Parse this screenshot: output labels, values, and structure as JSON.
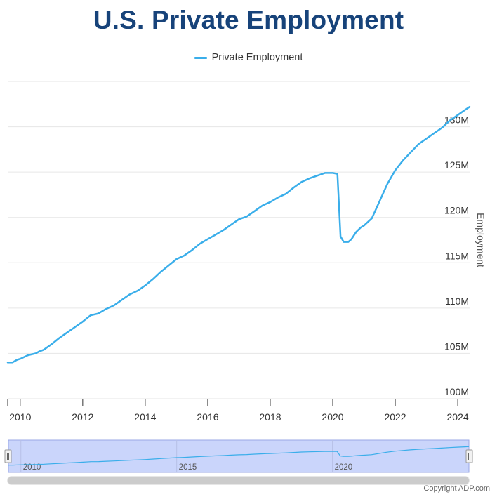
{
  "chart_data": {
    "type": "line",
    "title": "U.S. Private Employment",
    "ylabel": "Employment",
    "xlabel": "",
    "legend": "top-center",
    "grid": true,
    "ylim": [
      100,
      135
    ],
    "xlim": [
      2009.6,
      2024.38
    ],
    "y_ticks": [
      "100M",
      "105M",
      "110M",
      "115M",
      "120M",
      "125M",
      "130M"
    ],
    "x_ticks": [
      "2010",
      "2012",
      "2014",
      "2016",
      "2018",
      "2020",
      "2022",
      "2024"
    ],
    "navigator_ticks": [
      "2010",
      "2015",
      "2020"
    ],
    "series": [
      {
        "name": "Private Employment",
        "color": "#3aaeea",
        "x": [
          2009.6,
          2009.75,
          2009.9,
          2010.0,
          2010.25,
          2010.5,
          2010.6,
          2010.75,
          2011.0,
          2011.25,
          2011.5,
          2011.75,
          2012.0,
          2012.25,
          2012.5,
          2012.75,
          2013.0,
          2013.25,
          2013.5,
          2013.75,
          2014.0,
          2014.25,
          2014.5,
          2014.75,
          2015.0,
          2015.25,
          2015.5,
          2015.75,
          2016.0,
          2016.25,
          2016.5,
          2016.75,
          2017.0,
          2017.25,
          2017.5,
          2017.75,
          2018.0,
          2018.25,
          2018.5,
          2018.75,
          2019.0,
          2019.25,
          2019.5,
          2019.75,
          2020.0,
          2020.15,
          2020.25,
          2020.35,
          2020.5,
          2020.6,
          2020.75,
          2020.9,
          2021.0,
          2021.25,
          2021.5,
          2021.75,
          2022.0,
          2022.25,
          2022.5,
          2022.75,
          2023.0,
          2023.25,
          2023.5,
          2023.75,
          2024.0,
          2024.25,
          2024.38
        ],
        "values": [
          104.0,
          104.0,
          104.3,
          104.4,
          104.8,
          105.0,
          105.2,
          105.4,
          106.0,
          106.7,
          107.3,
          107.9,
          108.5,
          109.2,
          109.4,
          109.9,
          110.3,
          110.9,
          111.5,
          111.9,
          112.5,
          113.2,
          114.0,
          114.7,
          115.4,
          115.8,
          116.4,
          117.1,
          117.6,
          118.1,
          118.6,
          119.2,
          119.8,
          120.1,
          120.7,
          121.3,
          121.7,
          122.2,
          122.6,
          123.3,
          123.9,
          124.3,
          124.6,
          124.9,
          124.9,
          124.8,
          117.9,
          117.3,
          117.3,
          117.6,
          118.4,
          118.9,
          119.1,
          119.9,
          121.8,
          123.7,
          125.2,
          126.3,
          127.2,
          128.1,
          128.7,
          129.3,
          129.9,
          130.7,
          131.3,
          131.9,
          132.2
        ]
      }
    ]
  },
  "copyright": "Copyright ADP.com"
}
